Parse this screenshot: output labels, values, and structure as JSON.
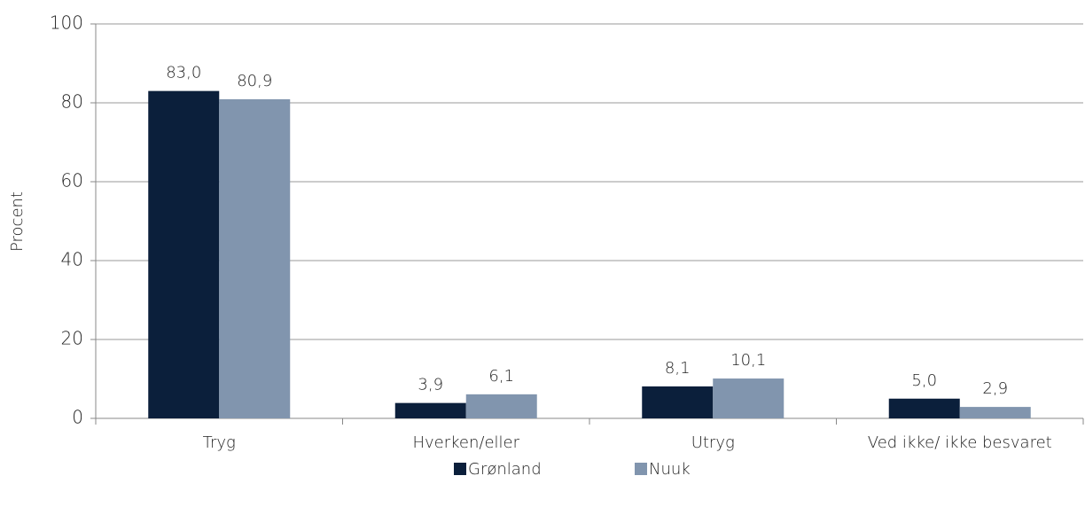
{
  "chart_data": {
    "type": "bar",
    "ylabel": "Procent",
    "categories": [
      "Tryg",
      "Hverken/eller",
      "Utryg",
      "Ved ikke/ ikke besvaret"
    ],
    "series": [
      {
        "name": "Grønland",
        "color": "#0b1f3b",
        "values": [
          83.0,
          3.9,
          8.1,
          5.0
        ],
        "value_labels": [
          "83,0",
          "3,9",
          "8,1",
          "5,0"
        ]
      },
      {
        "name": "Nuuk",
        "color": "#8195ae",
        "values": [
          80.9,
          6.1,
          10.1,
          2.9
        ],
        "value_labels": [
          "80,9",
          "6,1",
          "10,1",
          "2,9"
        ]
      }
    ],
    "ylim": [
      0,
      100
    ],
    "yticks": [
      0,
      20,
      40,
      60,
      80,
      100
    ],
    "grid": true,
    "legend": "bottom"
  }
}
